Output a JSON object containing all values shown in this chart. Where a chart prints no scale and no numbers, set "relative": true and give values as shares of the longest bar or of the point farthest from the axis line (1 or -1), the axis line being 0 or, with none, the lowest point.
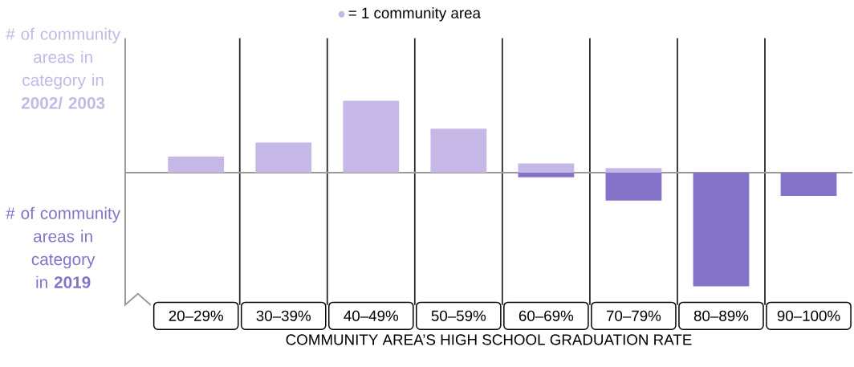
{
  "chart_data": {
    "type": "bar",
    "categories": [
      "20–29%",
      "30–39%",
      "40–49%",
      "50–59%",
      "60–69%",
      "70–79%",
      "80–89%",
      "90–100%"
    ],
    "series": [
      {
        "name": "# of community areas in category in **2002/ 2003**",
        "color": "#c5b8e6",
        "values": [
          0.1429,
          0.2653,
          0.6327,
          0.3878,
          0.0816,
          0.0408,
          0,
          0
        ]
      },
      {
        "name": "# of community areas in category in **2019**",
        "color": "#8473c9",
        "values": [
          0,
          0,
          0,
          0,
          -0.0408,
          -0.2449,
          -1,
          -0.2041
        ]
      }
    ],
    "relative": true,
    "xlabel": "COMMUNITY AREA’S HIGH SCHOOL GRADUATION RATE",
    "annotations": [
      "= 1 community area"
    ]
  }
}
